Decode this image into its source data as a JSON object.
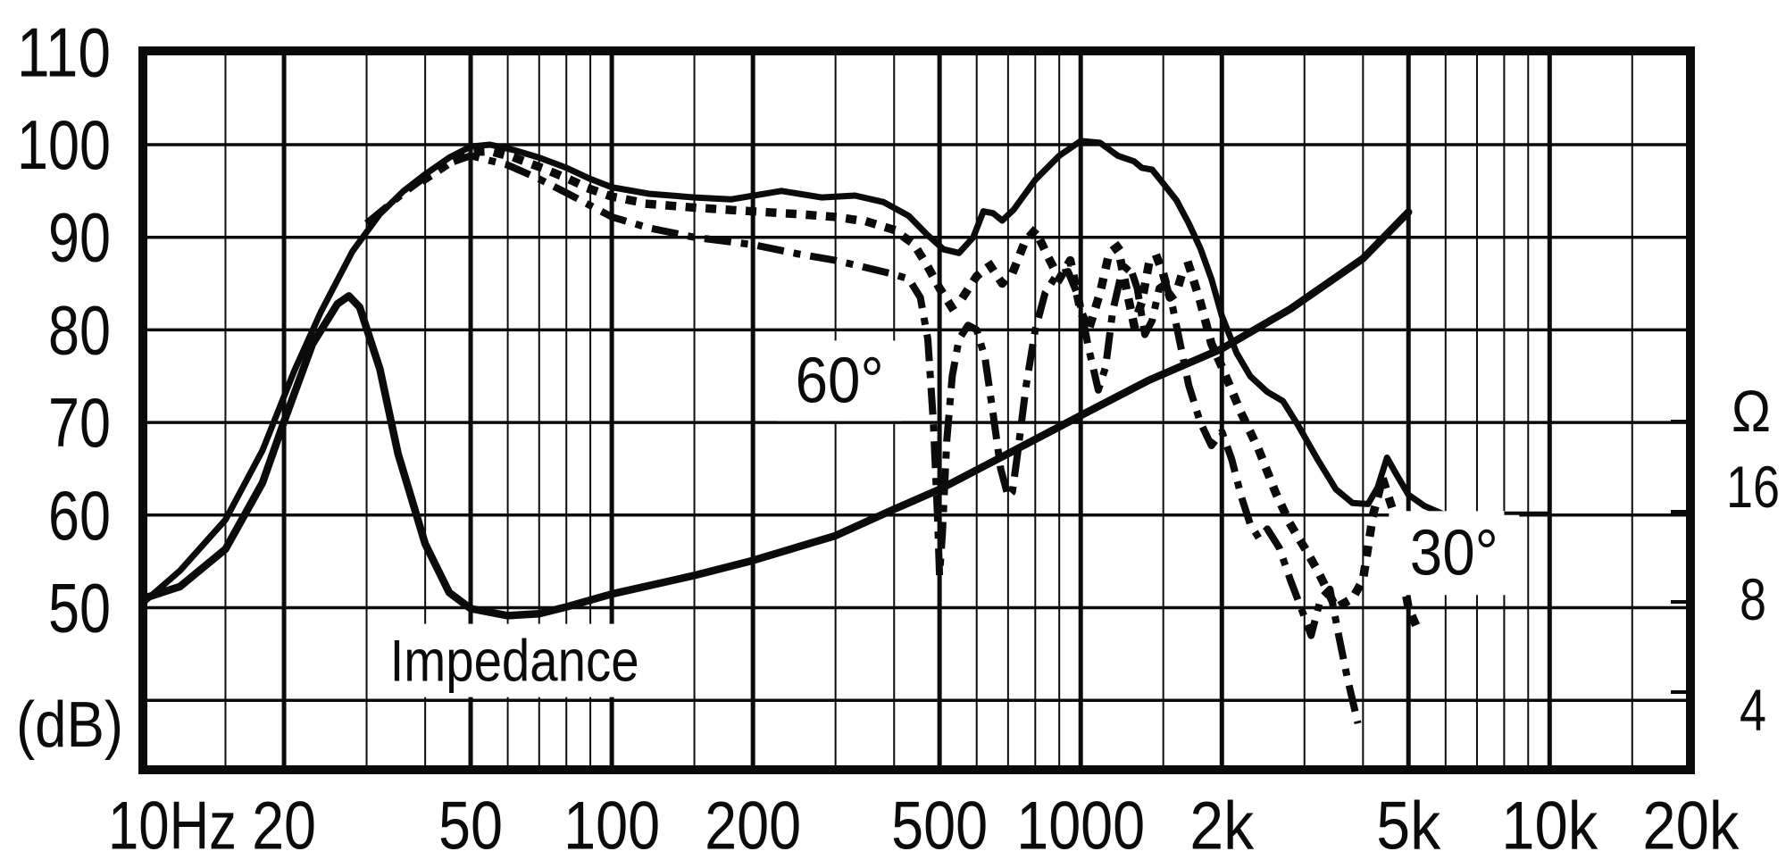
{
  "figure": {
    "description": "Loudspeaker frequency response (on-axis, 30 deg, 60 deg) and impedance curve on a log-frequency grid",
    "left_axis_unit": "(dB)",
    "right_axis_unit": "Ω"
  },
  "chart_data": {
    "type": "line",
    "title": "",
    "x_axis": {
      "scale": "log",
      "unit": "Hz",
      "min": 10,
      "max": 20000,
      "tick_values": [
        10,
        20,
        50,
        100,
        200,
        500,
        1000,
        2000,
        5000,
        10000,
        20000
      ],
      "tick_labels": [
        "10Hz",
        "20",
        "50",
        "100",
        "200",
        "500",
        "1000",
        "2k",
        "5k",
        "10k",
        "20k"
      ],
      "major_gridlines": [
        20,
        50,
        100,
        200,
        500,
        1000,
        2000,
        5000,
        10000
      ],
      "minor_gridlines": [
        15,
        30,
        40,
        60,
        70,
        80,
        90,
        150,
        300,
        400,
        600,
        700,
        800,
        900,
        1500,
        3000,
        4000,
        6000,
        7000,
        8000,
        9000,
        15000
      ],
      "grid": true
    },
    "y_axis_left": {
      "label": "(dB)",
      "tick_values": [
        110,
        100,
        90,
        80,
        70,
        60,
        50
      ],
      "gridline_values": [
        100,
        90,
        80,
        70,
        60,
        50,
        40
      ],
      "range_top": 110,
      "range_bottom_edge": 32.5
    },
    "y_axis_right": {
      "label": "Ω",
      "scale": "log",
      "tick_values": [
        16,
        8,
        4
      ],
      "tick_marks": [
        32,
        16,
        8,
        4
      ]
    },
    "legend_position": "none",
    "series": [
      {
        "name": "on-axis frequency response",
        "style": "solid",
        "unit": "dB SPL",
        "points": [
          [
            10,
            50.5
          ],
          [
            12,
            54
          ],
          [
            15,
            59.5
          ],
          [
            18,
            67
          ],
          [
            21,
            75.5
          ],
          [
            24,
            82
          ],
          [
            28,
            88.5
          ],
          [
            32,
            92.5
          ],
          [
            36,
            95
          ],
          [
            40,
            96.8
          ],
          [
            45,
            98.6
          ],
          [
            50,
            99.8
          ],
          [
            55,
            100
          ],
          [
            62,
            99.4
          ],
          [
            70,
            98.6
          ],
          [
            80,
            97.5
          ],
          [
            90,
            96.3
          ],
          [
            100,
            95.4
          ],
          [
            120,
            94.7
          ],
          [
            150,
            94.3
          ],
          [
            180,
            94.1
          ],
          [
            230,
            95
          ],
          [
            280,
            94.3
          ],
          [
            330,
            94.5
          ],
          [
            380,
            93.8
          ],
          [
            430,
            92.3
          ],
          [
            470,
            90.3
          ],
          [
            510,
            88.7
          ],
          [
            550,
            88.3
          ],
          [
            590,
            90
          ],
          [
            620,
            92.8
          ],
          [
            650,
            92.6
          ],
          [
            680,
            91.8
          ],
          [
            720,
            93
          ],
          [
            800,
            96.2
          ],
          [
            900,
            98.8
          ],
          [
            1000,
            100.4
          ],
          [
            1100,
            100.2
          ],
          [
            1200,
            98.8
          ],
          [
            1300,
            98.2
          ],
          [
            1350,
            97.5
          ],
          [
            1420,
            97.3
          ],
          [
            1500,
            95.8
          ],
          [
            1600,
            94
          ],
          [
            1700,
            91.5
          ],
          [
            1800,
            88.8
          ],
          [
            1900,
            85.5
          ],
          [
            2000,
            81.5
          ],
          [
            2150,
            77.5
          ],
          [
            2300,
            75
          ],
          [
            2500,
            73.3
          ],
          [
            2700,
            72.3
          ],
          [
            2900,
            69.8
          ],
          [
            3200,
            66
          ],
          [
            3500,
            62.8
          ],
          [
            3800,
            61.3
          ],
          [
            4100,
            61.2
          ],
          [
            4300,
            63
          ],
          [
            4500,
            66.2
          ],
          [
            4700,
            64.5
          ],
          [
            5000,
            62.2
          ],
          [
            5400,
            61
          ],
          [
            6000,
            60
          ],
          [
            6500,
            58.5
          ]
        ]
      },
      {
        "name": "30 degree off-axis response",
        "label": "30°",
        "style": "dotted",
        "unit": "dB SPL",
        "points": [
          [
            40,
            96.3
          ],
          [
            45,
            98
          ],
          [
            50,
            99.2
          ],
          [
            55,
            99.3
          ],
          [
            62,
            98.6
          ],
          [
            70,
            97.6
          ],
          [
            80,
            96.4
          ],
          [
            90,
            95.2
          ],
          [
            100,
            94.4
          ],
          [
            120,
            93.6
          ],
          [
            150,
            93.2
          ],
          [
            200,
            92.8
          ],
          [
            250,
            92.5
          ],
          [
            300,
            92.2
          ],
          [
            350,
            91.7
          ],
          [
            400,
            90.8
          ],
          [
            440,
            89.3
          ],
          [
            470,
            87
          ],
          [
            500,
            84.5
          ],
          [
            530,
            82.5
          ],
          [
            560,
            83.5
          ],
          [
            600,
            85.8
          ],
          [
            640,
            87
          ],
          [
            680,
            85
          ],
          [
            720,
            86.5
          ],
          [
            760,
            89.5
          ],
          [
            800,
            90.8
          ],
          [
            850,
            88
          ],
          [
            900,
            85.5
          ],
          [
            950,
            87.5
          ],
          [
            1000,
            82
          ],
          [
            1040,
            80
          ],
          [
            1100,
            84
          ],
          [
            1150,
            88.3
          ],
          [
            1200,
            89
          ],
          [
            1250,
            84.5
          ],
          [
            1300,
            80.5
          ],
          [
            1350,
            83
          ],
          [
            1400,
            87.3
          ],
          [
            1450,
            88
          ],
          [
            1500,
            86
          ],
          [
            1550,
            83.5
          ],
          [
            1600,
            84
          ],
          [
            1650,
            86.3
          ],
          [
            1700,
            87
          ],
          [
            1800,
            83
          ],
          [
            1900,
            78.5
          ],
          [
            2000,
            76
          ],
          [
            2200,
            71
          ],
          [
            2400,
            67
          ],
          [
            2600,
            62.5
          ],
          [
            2800,
            59
          ],
          [
            3000,
            56.5
          ],
          [
            3200,
            54
          ],
          [
            3500,
            50
          ],
          [
            3800,
            51
          ],
          [
            4000,
            53
          ],
          [
            4200,
            60
          ],
          [
            4400,
            64
          ],
          [
            4600,
            61
          ],
          [
            4800,
            55
          ],
          [
            5000,
            50
          ],
          [
            5300,
            47
          ]
        ]
      },
      {
        "name": "60 degree off-axis response",
        "label": "60°",
        "style": "dash-dot",
        "unit": "dB SPL",
        "points": [
          [
            30,
            91.5
          ],
          [
            36,
            94.8
          ],
          [
            40,
            96.5
          ],
          [
            45,
            98
          ],
          [
            50,
            98.8
          ],
          [
            60,
            97.8
          ],
          [
            70,
            96.3
          ],
          [
            80,
            94.8
          ],
          [
            100,
            92.2
          ],
          [
            120,
            91
          ],
          [
            150,
            90
          ],
          [
            200,
            89.2
          ],
          [
            250,
            88.2
          ],
          [
            300,
            87.5
          ],
          [
            350,
            86.7
          ],
          [
            400,
            86
          ],
          [
            430,
            85.5
          ],
          [
            455,
            83.5
          ],
          [
            472,
            79
          ],
          [
            485,
            70
          ],
          [
            495,
            60
          ],
          [
            500,
            53.5
          ],
          [
            507,
            58
          ],
          [
            518,
            68
          ],
          [
            532,
            75
          ],
          [
            550,
            79
          ],
          [
            575,
            80.5
          ],
          [
            600,
            80
          ],
          [
            625,
            77
          ],
          [
            650,
            71
          ],
          [
            675,
            65
          ],
          [
            700,
            62
          ],
          [
            715,
            62.5
          ],
          [
            735,
            67
          ],
          [
            765,
            74
          ],
          [
            800,
            80
          ],
          [
            840,
            84
          ],
          [
            890,
            86
          ],
          [
            940,
            86.3
          ],
          [
            990,
            83.5
          ],
          [
            1040,
            78
          ],
          [
            1090,
            73.5
          ],
          [
            1130,
            76
          ],
          [
            1170,
            82
          ],
          [
            1220,
            86
          ],
          [
            1270,
            87
          ],
          [
            1320,
            84.5
          ],
          [
            1370,
            79.5
          ],
          [
            1420,
            81
          ],
          [
            1470,
            84.5
          ],
          [
            1520,
            85
          ],
          [
            1570,
            82.5
          ],
          [
            1630,
            78.5
          ],
          [
            1700,
            74
          ],
          [
            1800,
            70
          ],
          [
            1900,
            67.5
          ],
          [
            2000,
            69
          ],
          [
            2100,
            66
          ],
          [
            2200,
            62
          ],
          [
            2300,
            59
          ],
          [
            2400,
            57.5
          ],
          [
            2500,
            58.5
          ],
          [
            2650,
            56.5
          ],
          [
            2800,
            53
          ],
          [
            3000,
            49
          ],
          [
            3100,
            47
          ],
          [
            3250,
            51
          ],
          [
            3400,
            52
          ],
          [
            3550,
            47
          ],
          [
            3700,
            42.5
          ],
          [
            3900,
            37.5
          ]
        ]
      },
      {
        "name": "impedance",
        "label": "Impedance",
        "style": "solid",
        "unit": "ohm",
        "points": [
          [
            10,
            8.2
          ],
          [
            12,
            9
          ],
          [
            15,
            12
          ],
          [
            18,
            20
          ],
          [
            20,
            32
          ],
          [
            23,
            58
          ],
          [
            26,
            79
          ],
          [
            27.5,
            84
          ],
          [
            29,
            77
          ],
          [
            32,
            48
          ],
          [
            35,
            25
          ],
          [
            40,
            12.5
          ],
          [
            45,
            8.6
          ],
          [
            50,
            7.6
          ],
          [
            60,
            7.2
          ],
          [
            70,
            7.3
          ],
          [
            80,
            7.7
          ],
          [
            100,
            8.5
          ],
          [
            150,
            9.8
          ],
          [
            200,
            11
          ],
          [
            300,
            13.3
          ],
          [
            400,
            16.3
          ],
          [
            500,
            19
          ],
          [
            700,
            25
          ],
          [
            1000,
            33.5
          ],
          [
            1400,
            44
          ],
          [
            2000,
            56
          ],
          [
            2800,
            76
          ],
          [
            4000,
            112
          ],
          [
            5000,
            160
          ]
        ]
      }
    ],
    "annotations": [
      {
        "text": "60°",
        "target_series": "60 degree off-axis response",
        "hz": 306,
        "db": 74.5
      },
      {
        "text": "30°",
        "target_series": "30 degree off-axis response",
        "hz": 6255,
        "db": 55.9
      },
      {
        "text": "Impedance",
        "target_series": "impedance",
        "hz": 62,
        "db": 44.3
      }
    ],
    "leader_line": {
      "from_hz": 8000,
      "to_hz": 9900,
      "db": 60.2
    }
  },
  "colors": {
    "ink": "#0b0b0b",
    "background": "#ffffff"
  }
}
